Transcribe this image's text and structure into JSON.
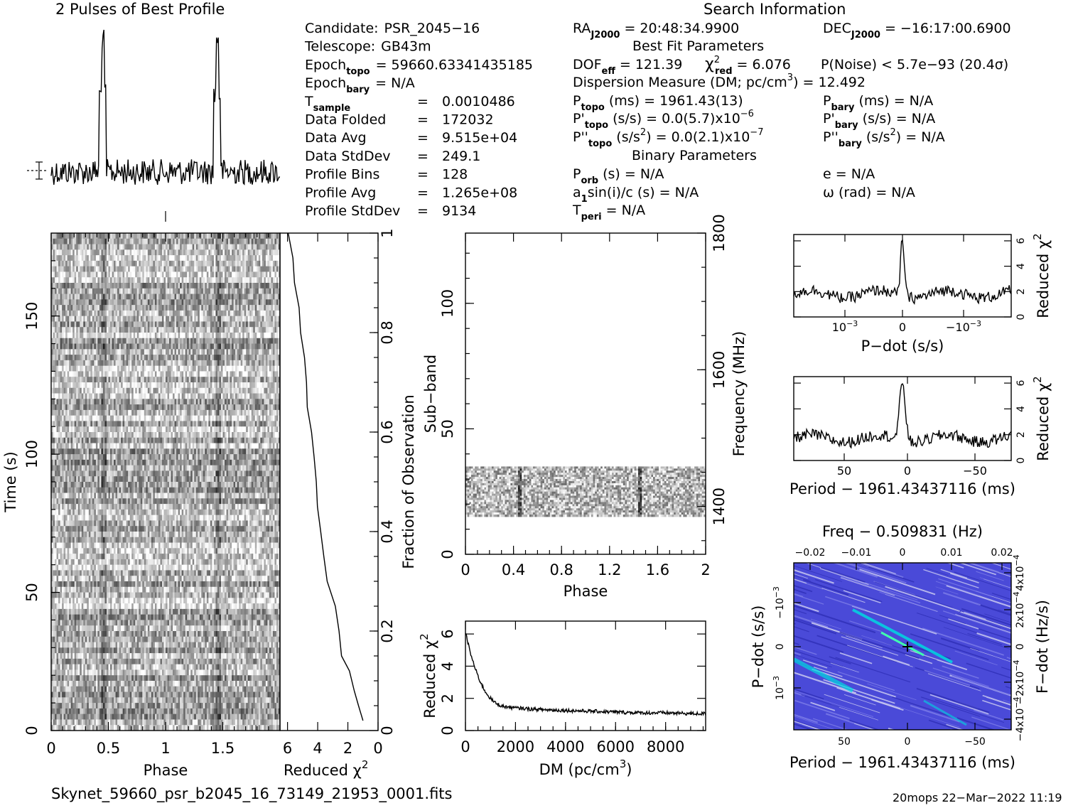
{
  "profile": {
    "title": "2 Pulses of Best Profile"
  },
  "candidate": [
    {
      "label": "Candidate:",
      "value": "PSR_2045−16"
    },
    {
      "label": "Telescope:",
      "value": "GB43m"
    },
    {
      "label": "Epoch",
      "sub": "topo",
      "value": "= 59660.63341435185"
    },
    {
      "label": "Epoch",
      "sub": "bary",
      "value": "= N/A"
    },
    {
      "label": "T",
      "sub": "sample",
      "value": "0.0010486"
    },
    {
      "label": "Data Folded",
      "value": "172032"
    },
    {
      "label": "Data Avg",
      "value": "9.515e+04"
    },
    {
      "label": "Data StdDev",
      "value": "249.1"
    },
    {
      "label": "Profile Bins",
      "value": "128"
    },
    {
      "label": "Profile Avg",
      "value": "1.265e+08"
    },
    {
      "label": "Profile StdDev",
      "value": "9134"
    }
  ],
  "search": {
    "title": "Search Information",
    "ra": {
      "label": "RA",
      "sub": "J2000",
      "value": "= 20:48:34.9900"
    },
    "dec": {
      "label": "DEC",
      "sub": "J2000",
      "value": "= −16:17:00.6900"
    },
    "best_fit_title": "Best Fit Parameters",
    "dof": {
      "label": "DOF",
      "sub": "eff",
      "value": "= 121.39"
    },
    "chi": {
      "label": "χ",
      "sup": "2",
      "sub": "red",
      "value": "= 6.076"
    },
    "pnoise": "P(Noise) < 5.7e−93   (20.4σ)",
    "dm": "Dispersion Measure (DM; pc/cm",
    "dm_sup": "3",
    "dm_value": ") = 12.492",
    "ptopo": {
      "label": "P",
      "sub": "topo",
      "value": "(ms) =  1961.43(13)"
    },
    "pbary": {
      "label": "P",
      "sub": "bary",
      "value": "(ms) = N/A"
    },
    "pdtopo": {
      "label": "P'",
      "sub": "topo",
      "value": "(s/s) = 0.0(5.7)x10",
      "sup": "−6"
    },
    "pdbary": {
      "label": "P'",
      "sub": "bary",
      "value": "(s/s) = N/A"
    },
    "pddtopo": {
      "label": "P''",
      "sub": "topo",
      "value": "(s/s",
      "sup1": "2",
      "value2": ") = 0.0(2.1)x10",
      "sup": "−7"
    },
    "pddbary": {
      "label": "P''",
      "sub": "bary",
      "value": "(s/s",
      "sup1": "2",
      "value2": ") = N/A"
    },
    "binary_title": "Binary Parameters",
    "porb": {
      "label": "P",
      "sub": "orb",
      "value": "(s) = N/A"
    },
    "ecc": "e = N/A",
    "a1": {
      "label": "a",
      "sub": "1",
      "value": "sin(i)/c (s) = N/A"
    },
    "omega": "ω (rad) = N/A",
    "tperi": {
      "label": "T",
      "sub": "peri",
      "value": "= N/A"
    }
  },
  "footer": {
    "filename": "Skynet_59660_psr_b2045_16_73149_21953_0001.fits",
    "stamp": "20mops 22−Mar−2022 11:19"
  },
  "colors": {
    "ink": "#000000",
    "pp_background": "#4a4ad8",
    "pp_peak": "#00d8e0"
  },
  "chart_data": [
    {
      "type": "line",
      "name": "pulse-profile",
      "title": "2 Pulses of Best Profile",
      "xlim": [
        0,
        2
      ],
      "peaks_phase": [
        0.45,
        1.45
      ],
      "note_style": "noise with two spikes per 2 pulses"
    },
    {
      "type": "heatmap",
      "name": "time-phase",
      "xlabel": "Phase",
      "ylabel": "Time (s)",
      "xlim": [
        0,
        2
      ],
      "ylim": [
        0,
        180
      ],
      "x_ticks": [
        "0",
        "0.5",
        "1",
        "1.5"
      ],
      "y_ticks": [
        "0",
        "50",
        "100",
        "150"
      ]
    },
    {
      "type": "line",
      "name": "time-chi2",
      "xlabel": "Reduced χ",
      "xlabel_sup": "2",
      "ylabel": "Fraction of Observation",
      "x_ticks": [
        "6",
        "4",
        "2",
        "0"
      ],
      "y_ticks": [
        "0",
        "0.2",
        "0.4",
        "0.6",
        "0.8",
        "1"
      ],
      "xlim": [
        6.5,
        0
      ],
      "ylim": [
        0,
        1
      ],
      "points": [
        [
          0.02,
          1.1
        ],
        [
          0.05,
          1.3
        ],
        [
          0.08,
          1.6
        ],
        [
          0.12,
          2.0
        ],
        [
          0.15,
          2.3
        ],
        [
          0.2,
          2.6
        ],
        [
          0.25,
          2.9
        ],
        [
          0.3,
          3.3
        ],
        [
          0.35,
          3.6
        ],
        [
          0.4,
          3.8
        ],
        [
          0.45,
          3.9
        ],
        [
          0.5,
          4.1
        ],
        [
          0.55,
          4.3
        ],
        [
          0.6,
          4.5
        ],
        [
          0.65,
          4.6
        ],
        [
          0.7,
          4.8
        ],
        [
          0.75,
          5.0
        ],
        [
          0.8,
          5.1
        ],
        [
          0.85,
          5.3
        ],
        [
          0.9,
          5.5
        ],
        [
          0.95,
          5.7
        ],
        [
          1.0,
          6.0
        ]
      ]
    },
    {
      "type": "heatmap",
      "name": "subband-phase",
      "xlabel": "Phase",
      "ylabel": "Sub−band",
      "y2label": "Frequency (MHz)",
      "xlim": [
        0,
        2
      ],
      "ylim": [
        0,
        128
      ],
      "x_ticks": [
        "0",
        "0.4",
        "0.8",
        "1.2",
        "1.6",
        "2"
      ],
      "y_ticks": [
        "0",
        "50",
        "100"
      ],
      "y2_ticks": [
        "1400",
        "1600",
        "1800"
      ],
      "data_band": [
        15,
        35
      ]
    },
    {
      "type": "line",
      "name": "dm-chi2",
      "xlabel": "DM (pc/cm",
      "xlabel_sup": "3",
      "xlabel_end": ")",
      "ylabel": "Reduced χ",
      "ylabel_sup": "2",
      "xlim": [
        0,
        9600
      ],
      "ylim": [
        0,
        6.8
      ],
      "x_ticks": [
        "0",
        "2000",
        "4000",
        "6000",
        "8000"
      ],
      "y_ticks": [
        "0",
        "2",
        "4",
        "6"
      ],
      "points": [
        [
          0,
          6.1
        ],
        [
          200,
          4.8
        ],
        [
          400,
          3.8
        ],
        [
          600,
          3.0
        ],
        [
          800,
          2.4
        ],
        [
          1000,
          2.0
        ],
        [
          1200,
          1.7
        ],
        [
          1500,
          1.5
        ],
        [
          2000,
          1.4
        ],
        [
          3000,
          1.3
        ],
        [
          4000,
          1.25
        ],
        [
          5000,
          1.2
        ],
        [
          6000,
          1.15
        ],
        [
          7000,
          1.1
        ],
        [
          8000,
          1.1
        ],
        [
          9000,
          1.05
        ],
        [
          9600,
          1.05
        ]
      ]
    },
    {
      "type": "line",
      "name": "pdot-chi2",
      "xlabel": "P−dot (s/s)",
      "ylabel": "Reduced χ",
      "ylabel_sup": "2",
      "xlim": [
        -1,
        1
      ],
      "ylim": [
        0,
        6.5
      ],
      "x_ticks": [
        "10",
        "0",
        "−10"
      ],
      "x_ticks_sup": [
        "−3",
        "",
        "−3"
      ],
      "y_ticks": [
        "0",
        "2",
        "4",
        "6"
      ],
      "baseline": 1.8,
      "peak": 6.3
    },
    {
      "type": "line",
      "name": "period-chi2",
      "xlabel": "Period − 1961.43437116 (ms)",
      "ylabel": "Reduced χ",
      "ylabel_sup": "2",
      "xlim": [
        90,
        -80
      ],
      "ylim": [
        0,
        6.5
      ],
      "x_ticks": [
        "50",
        "0",
        "−50"
      ],
      "y_ticks": [
        "0",
        "2",
        "4",
        "6"
      ],
      "baseline": 1.7,
      "peak": 6.3
    },
    {
      "type": "heatmap",
      "name": "period-pdot",
      "title": "Freq − 0.509831 (Hz)",
      "xlabel": "Period − 1961.43437116 (ms)",
      "ylabel": "P−dot (s/s)",
      "y2label": "F−dot (Hz/s)",
      "x_ticks": [
        "50",
        "0",
        "−50"
      ],
      "top_ticks": [
        "−0.02",
        "−0.01",
        "0",
        "0.01",
        "0.02"
      ],
      "y_ticks": [
        "10",
        "0",
        "−10"
      ],
      "y_ticks_sup": [
        "−3",
        "",
        "−3"
      ],
      "y2_ticks": [
        "−4x10",
        "−2x10",
        "0",
        "2x10",
        "4x10"
      ],
      "y2_ticks_sup": [
        "−4",
        "−4",
        "",
        "−4",
        "−4"
      ]
    }
  ]
}
